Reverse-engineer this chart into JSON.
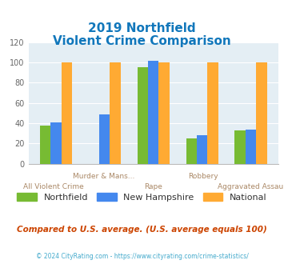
{
  "title_line1": "2019 Northfield",
  "title_line2": "Violent Crime Comparison",
  "categories": [
    "All Violent Crime",
    "Murder & Mans...",
    "Rape",
    "Robbery",
    "Aggravated Assault"
  ],
  "cats_top": [
    "",
    "Murder & Mans...",
    "",
    "Robbery",
    ""
  ],
  "cats_bottom": [
    "All Violent Crime",
    "",
    "Rape",
    "",
    "Aggravated Assault"
  ],
  "northfield": [
    38,
    0,
    95,
    25,
    33
  ],
  "new_hampshire": [
    41,
    49,
    102,
    28,
    34
  ],
  "national": [
    100,
    100,
    100,
    100,
    100
  ],
  "color_northfield": "#77bb33",
  "color_nh": "#4488ee",
  "color_national": "#ffaa33",
  "color_title": "#1177bb",
  "color_bg": "#e4eef4",
  "color_xlabel": "#aa8866",
  "color_footnote": "#cc4400",
  "color_copyright": "#aaaaaa",
  "color_copyright_link": "#44aacc",
  "ylim": [
    0,
    120
  ],
  "yticks": [
    0,
    20,
    40,
    60,
    80,
    100,
    120
  ],
  "legend_labels": [
    "Northfield",
    "New Hampshire",
    "National"
  ],
  "footnote": "Compared to U.S. average. (U.S. average equals 100)",
  "copyright": "© 2024 CityRating.com - https://www.cityrating.com/crime-statistics/"
}
